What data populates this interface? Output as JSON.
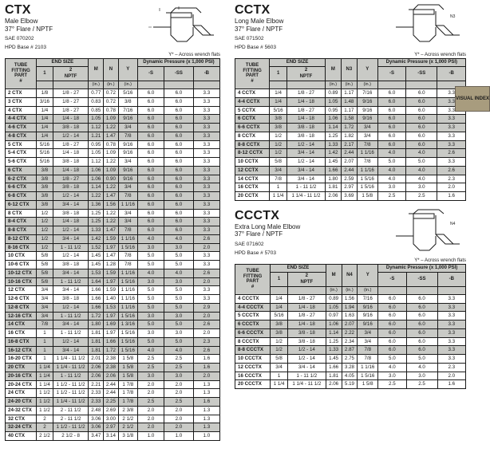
{
  "visualIndex": "VISUAL INDEX",
  "flatsNote": "Y* – Across wrench flats",
  "ctx": {
    "name": "CTX",
    "sub": "Male Elbow",
    "spec": "37° Flare / NPTF",
    "sae": "SAE 070202",
    "hpd": "HPD Base # 2103",
    "cols": [
      "TUBE FITTING PART #",
      "1",
      "2 NPTF",
      "M (in.)",
      "N (in.)",
      "Y (in.)",
      "-S",
      "-SS",
      "-B"
    ],
    "groupEnd": "END SIZE",
    "groupDyn": "Dynamic Pressure (x 1,000 PSI)",
    "rows": [
      [
        "2 CTX",
        "1/8",
        "1/8 - 27",
        "0.77",
        "0.72",
        "5/16",
        "6.0",
        "6.0",
        "3.3"
      ],
      [
        "3 CTX",
        "3/16",
        "1/8 - 27",
        "0.83",
        "0.72",
        "3/8",
        "6.0",
        "6.0",
        "3.3"
      ],
      [
        "4 CTX",
        "1/4",
        "1/8 - 27",
        "0.85",
        "0.78",
        "7/16",
        "6.0",
        "6.0",
        "3.3"
      ],
      [
        "4-4 CTX",
        "1/4",
        "1/4 - 18",
        "1.05",
        "1.09",
        "9/16",
        "6.0",
        "6.0",
        "3.3"
      ],
      [
        "4-6 CTX",
        "1/4",
        "3/8 - 18",
        "1.12",
        "1.22",
        "3/4",
        "6.0",
        "6.0",
        "3.3"
      ],
      [
        "4-8 CTX",
        "1/4",
        "1/2 - 14",
        "1.21",
        "1.47",
        "7/8",
        "6.0",
        "6.0",
        "3.3"
      ],
      [
        "5 CTX",
        "5/16",
        "1/8 - 27",
        "0.95",
        "0.78",
        "9/16",
        "6.0",
        "6.0",
        "3.3"
      ],
      [
        "5-4 CTX",
        "5/16",
        "1/4 - 18",
        "1.05",
        "1.09",
        "9/16",
        "6.0",
        "6.0",
        "3.3"
      ],
      [
        "5-6 CTX",
        "5/16",
        "3/8 - 18",
        "1.12",
        "1.22",
        "3/4",
        "6.0",
        "6.0",
        "3.3"
      ],
      [
        "6 CTX",
        "3/8",
        "1/4 - 18",
        "1.06",
        "1.09",
        "9/16",
        "6.0",
        "6.0",
        "3.3"
      ],
      [
        "6-2 CTX",
        "3/8",
        "1/8 - 27",
        "1.06",
        "0.90",
        "9/16",
        "6.0",
        "6.0",
        "3.3"
      ],
      [
        "6-6 CTX",
        "3/8",
        "3/8 - 18",
        "1.14",
        "1.22",
        "3/4",
        "6.0",
        "6.0",
        "3.3"
      ],
      [
        "6-8 CTX",
        "3/8",
        "1/2 - 14",
        "1.22",
        "1.47",
        "7/8",
        "6.0",
        "6.0",
        "3.3"
      ],
      [
        "6-12 CTX",
        "3/8",
        "3/4 - 14",
        "1.36",
        "1.56",
        "1 1/16",
        "6.0",
        "6.0",
        "3.3"
      ],
      [
        "8 CTX",
        "1/2",
        "3/8 - 18",
        "1.25",
        "1.22",
        "3/4",
        "6.0",
        "6.0",
        "3.3"
      ],
      [
        "8-4 CTX",
        "1/2",
        "1/4 - 18",
        "1.25",
        "1.22",
        "3/4",
        "6.0",
        "6.0",
        "3.3"
      ],
      [
        "8-8 CTX",
        "1/2",
        "1/2 - 14",
        "1.33",
        "1.47",
        "7/8",
        "6.0",
        "6.0",
        "3.3"
      ],
      [
        "8-12 CTX",
        "1/2",
        "3/4 - 14",
        "1.42",
        "1.59",
        "1 1/16",
        "4.0",
        "4.0",
        "2.6"
      ],
      [
        "8-16 CTX",
        "1/2",
        "1 - 11 1/2",
        "1.52",
        "1.97",
        "1 5/16",
        "3.0",
        "3.0",
        "2.0"
      ],
      [
        "10 CTX",
        "5/8",
        "1/2 - 14",
        "1.45",
        "1.47",
        "7/8",
        "5.0",
        "5.0",
        "3.3"
      ],
      [
        "10-6 CTX",
        "5/8",
        "3/8 - 18",
        "1.45",
        "1.28",
        "7/8",
        "5.0",
        "5.0",
        "3.3"
      ],
      [
        "10-12 CTX",
        "5/8",
        "3/4 - 14",
        "1.53",
        "1.59",
        "1 1/16",
        "4.0",
        "4.0",
        "2.6"
      ],
      [
        "10-16 CTX",
        "5/8",
        "1 - 11 1/2",
        "1.64",
        "1.97",
        "1 5/16",
        "3.0",
        "3.0",
        "2.0"
      ],
      [
        "12 CTX",
        "3/4",
        "3/4 - 14",
        "1.66",
        "1.59",
        "1 1/16",
        "5.0",
        "5.0",
        "3.3"
      ],
      [
        "12-6 CTX",
        "3/4",
        "3/8 - 18",
        "1.66",
        "1.40",
        "1 1/16",
        "5.0",
        "5.0",
        "3.3"
      ],
      [
        "12-8 CTX",
        "3/4",
        "1/2 - 14",
        "1.66",
        "1.53",
        "1 1/16",
        "5.0",
        "5.0",
        "2.9"
      ],
      [
        "12-16 CTX",
        "3/4",
        "1 - 11 1/2",
        "1.72",
        "1.97",
        "1 5/16",
        "3.0",
        "3.0",
        "2.0"
      ],
      [
        "14 CTX",
        "7/8",
        "3/4 - 14",
        "1.80",
        "1.69",
        "1 3/16",
        "5.0",
        "5.0",
        "2.6"
      ],
      [
        "16 CTX",
        "1",
        "1 - 11 1/2",
        "1.81",
        "1.97",
        "1 5/16",
        "3.0",
        "3.0",
        "2.0"
      ],
      [
        "16-8 CTX",
        "1",
        "1/2 - 14",
        "1.81",
        "1.66",
        "1 5/16",
        "5.0",
        "5.0",
        "2.3"
      ],
      [
        "16-12 CTX",
        "1",
        "3/4 - 14",
        "1.81",
        "1.72",
        "1 5/16",
        "4.0",
        "4.0",
        "2.6"
      ],
      [
        "16-20 CTX",
        "1",
        "1 1/4 - 11 1/2",
        "2.01",
        "2.38",
        "1 5/8",
        "2.5",
        "2.5",
        "1.6"
      ],
      [
        "20 CTX",
        "1 1/4",
        "1 1/4 - 11 1/2",
        "2.06",
        "2.38",
        "1 5/8",
        "2.5",
        "2.5",
        "1.6"
      ],
      [
        "20-16 CTX",
        "1 1/4",
        "1 - 11 1/2",
        "2.06",
        "2.06",
        "1 5/8",
        "3.0",
        "3.0",
        "2.0"
      ],
      [
        "20-24 CTX",
        "1 1/4",
        "1 1/2 - 11 1/2",
        "2.21",
        "2.44",
        "1 7/8",
        "2.0",
        "2.0",
        "1.3"
      ],
      [
        "24 CTX",
        "1 1/2",
        "1 1/2 - 11 1/2",
        "2.33",
        "2.44",
        "1 7/8",
        "2.0",
        "2.0",
        "1.3"
      ],
      [
        "24-20 CTX",
        "1 1/2",
        "1 1/4 - 11 1/2",
        "2.33",
        "2.25",
        "1 7/8",
        "2.5",
        "2.5",
        "1.6"
      ],
      [
        "24-32 CTX",
        "1 1/2",
        "2 - 11 1/2",
        "2.48",
        "2.69",
        "2 3/8",
        "2.0",
        "2.0",
        "1.3"
      ],
      [
        "32 CTX",
        "2",
        "2 - 11 1/2",
        "3.06",
        "3.00",
        "2 1/2",
        "2.0",
        "2.0",
        "1.3"
      ],
      [
        "32-24 CTX",
        "2",
        "1 1/2 - 11 1/2",
        "3.06",
        "2.97",
        "2 1/2",
        "2.0",
        "2.0",
        "1.3"
      ],
      [
        "40 CTX",
        "2 1/2",
        "2 1/2 - 8",
        "3.47",
        "3.14",
        "3 1/8",
        "1.0",
        "1.0",
        "1.0"
      ]
    ],
    "shade": [
      3,
      4,
      5,
      9,
      10,
      11,
      12,
      13,
      15,
      16,
      17,
      18,
      21,
      22,
      25,
      26,
      27,
      29,
      30,
      32,
      33,
      36,
      39
    ]
  },
  "cctx": {
    "name": "CCTX",
    "sub": "Long Male Elbow",
    "spec": "37° Flare / NPTF",
    "sae": "SAE 071502",
    "hpd": "HPD Base # 5603",
    "cols": [
      "TUBE FITTING PART #",
      "1",
      "2 NPTF",
      "M (in.)",
      "N3 (in.)",
      "Y (in.)",
      "-S",
      "-SS",
      "-B"
    ],
    "rows": [
      [
        "4 CCTX",
        "1/4",
        "1/8 - 27",
        "0.89",
        "1.17",
        "7/16",
        "6.0",
        "6.0",
        "3.3"
      ],
      [
        "4-4 CCTX",
        "1/4",
        "1/4 - 18",
        "1.05",
        "1.48",
        "9/16",
        "6.0",
        "6.0",
        "3.3"
      ],
      [
        "5 CCTX",
        "5/16",
        "1/8 - 27",
        "0.95",
        "1.17",
        "9/16",
        "6.0",
        "6.0",
        "3.3"
      ],
      [
        "6 CCTX",
        "3/8",
        "1/4 - 18",
        "1.06",
        "1.58",
        "9/16",
        "6.0",
        "6.0",
        "3.3"
      ],
      [
        "6-6 CCTX",
        "3/8",
        "3/8 - 18",
        "1.14",
        "1.72",
        "3/4",
        "6.0",
        "6.0",
        "3.3"
      ],
      [
        "8 CCTX",
        "1/2",
        "3/8 - 18",
        "1.25",
        "1.82",
        "3/4",
        "6.0",
        "6.0",
        "3.3"
      ],
      [
        "8-8 CCTX",
        "1/2",
        "1/2 - 14",
        "1.33",
        "2.17",
        "7/8",
        "6.0",
        "6.0",
        "3.3"
      ],
      [
        "8-12 CCTX",
        "1/2",
        "3/4 - 14",
        "1.42",
        "2.44",
        "1 1/16",
        "4.0",
        "4.0",
        "2.6"
      ],
      [
        "10 CCTX",
        "5/8",
        "1/2 - 14",
        "1.45",
        "2.07",
        "7/8",
        "5.0",
        "5.0",
        "3.3"
      ],
      [
        "12 CCTX",
        "3/4",
        "3/4 - 14",
        "1.66",
        "2.44",
        "1 1/16",
        "4.0",
        "4.0",
        "2.6"
      ],
      [
        "14 CCTX",
        "7/8",
        "3/4 - 14",
        "1.80",
        "2.59",
        "1 5/16",
        "4.0",
        "4.0",
        "2.3"
      ],
      [
        "16 CCTX",
        "1",
        "1 - 11 1/2",
        "1.81",
        "2.97",
        "1 5/16",
        "3.0",
        "3.0",
        "2.0"
      ],
      [
        "20 CCTX",
        "1 1/4",
        "1 1/4 - 11 1/2",
        "2.06",
        "3.69",
        "1 5/8",
        "2.5",
        "2.5",
        "1.6"
      ]
    ],
    "shade": [
      1,
      3,
      4,
      6,
      7,
      9
    ]
  },
  "ccctx": {
    "name": "CCCTX",
    "sub": "Extra Long Male Elbow",
    "spec": "37° Flare / NPTF",
    "sae": "SAE 071602",
    "hpd": "HPD Base # 5703",
    "cols": [
      "TUBE FITTING PART #",
      "1",
      "2 NPTF",
      "M (in.)",
      "N4 (in.)",
      "Y (in.)",
      "-S",
      "-SS",
      "-B"
    ],
    "rows": [
      [
        "4 CCCTX",
        "1/4",
        "1/8 - 27",
        "0.89",
        "1.56",
        "7/16",
        "6.0",
        "6.0",
        "3.3"
      ],
      [
        "4-4 CCCTX",
        "1/4",
        "1/4 - 18",
        "1.05",
        "1.94",
        "9/16",
        "6.0",
        "6.0",
        "3.3"
      ],
      [
        "5 CCCTX",
        "5/16",
        "1/8 - 27",
        "0.97",
        "1.63",
        "9/16",
        "6.0",
        "6.0",
        "3.3"
      ],
      [
        "6 CCCTX",
        "3/8",
        "1/4 - 18",
        "1.06",
        "2.07",
        "9/16",
        "6.0",
        "6.0",
        "3.3"
      ],
      [
        "6-6 CCCTX",
        "3/8",
        "3/8 - 18",
        "1.14",
        "2.22",
        "3/4",
        "6.0",
        "6.0",
        "3.3"
      ],
      [
        "8 CCCTX",
        "1/2",
        "3/8 - 18",
        "1.25",
        "2.34",
        "3/4",
        "6.0",
        "6.0",
        "3.3"
      ],
      [
        "8-8 CCCTX",
        "1/2",
        "1/2 - 14",
        "1.33",
        "2.87",
        "7/8",
        "6.0",
        "6.0",
        "3.3"
      ],
      [
        "10 CCCTX",
        "5/8",
        "1/2 - 14",
        "1.45",
        "2.75",
        "7/8",
        "5.0",
        "5.0",
        "3.3"
      ],
      [
        "12 CCCTX",
        "3/4",
        "3/4 - 14",
        "1.66",
        "3.28",
        "1 1/16",
        "4.0",
        "4.0",
        "2.3"
      ],
      [
        "16 CCCTX",
        "1",
        "1 - 11 1/2",
        "1.81",
        "4.05",
        "1 5/16",
        "3.0",
        "3.0",
        "2.0"
      ],
      [
        "20 CCCTX",
        "1 1/4",
        "1 1/4 - 11 1/2",
        "2.06",
        "5.19",
        "1 5/8",
        "2.5",
        "2.5",
        "1.6"
      ]
    ],
    "shade": [
      1,
      3,
      4,
      6
    ]
  }
}
